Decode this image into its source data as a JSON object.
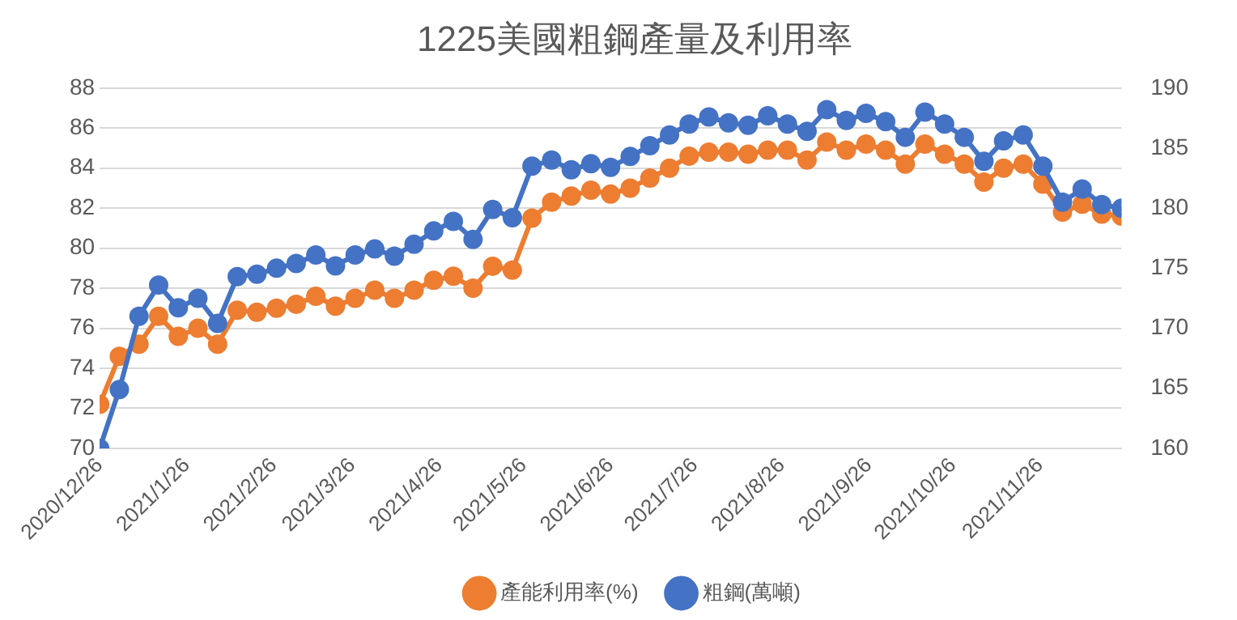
{
  "chart_data": {
    "type": "line",
    "title": "1225美國粗鋼產量及利用率",
    "x": [
      "2020-12-26",
      "2021-01-02",
      "2021-01-09",
      "2021-01-16",
      "2021-01-23",
      "2021-01-30",
      "2021-02-06",
      "2021-02-13",
      "2021-02-20",
      "2021-02-27",
      "2021-03-06",
      "2021-03-13",
      "2021-03-20",
      "2021-03-27",
      "2021-04-03",
      "2021-04-10",
      "2021-04-17",
      "2021-04-24",
      "2021-05-01",
      "2021-05-08",
      "2021-05-15",
      "2021-05-22",
      "2021-05-29",
      "2021-06-05",
      "2021-06-12",
      "2021-06-19",
      "2021-06-26",
      "2021-07-03",
      "2021-07-10",
      "2021-07-17",
      "2021-07-24",
      "2021-07-31",
      "2021-08-07",
      "2021-08-14",
      "2021-08-21",
      "2021-08-28",
      "2021-09-04",
      "2021-09-11",
      "2021-09-18",
      "2021-09-25",
      "2021-10-02",
      "2021-10-09",
      "2021-10-16",
      "2021-10-23",
      "2021-10-30",
      "2021-11-06",
      "2021-11-13",
      "2021-11-20",
      "2021-11-27",
      "2021-12-04",
      "2021-12-11",
      "2021-12-18",
      "2021-12-25"
    ],
    "series": [
      {
        "name": "產能利用率(%)",
        "color": "#ed7d31",
        "values": [
          72.2,
          74.6,
          75.2,
          76.6,
          75.6,
          76.0,
          75.2,
          76.9,
          76.8,
          77.0,
          77.2,
          77.6,
          77.1,
          77.5,
          77.9,
          77.5,
          77.9,
          78.4,
          78.6,
          78.0,
          79.1,
          78.9,
          81.5,
          82.3,
          82.6,
          82.9,
          82.7,
          83.0,
          83.5,
          84.0,
          84.6,
          84.8,
          84.8,
          84.7,
          84.9,
          84.9,
          84.4,
          85.3,
          84.9,
          85.2,
          84.9,
          84.2,
          85.2,
          84.7,
          84.2,
          83.3,
          84.0,
          84.2,
          83.2,
          81.8,
          82.2,
          81.7,
          81.6
        ]
      },
      {
        "name": "粗鋼(萬噸)",
        "color": "#4472c4",
        "axis": "y2",
        "values": [
          160,
          164.9,
          171.0,
          173.6,
          171.7,
          172.5,
          170.4,
          174.3,
          174.5,
          175.0,
          175.4,
          176.1,
          175.2,
          176.1,
          176.6,
          176.0,
          177.0,
          178.1,
          178.9,
          177.4,
          179.9,
          179.2,
          183.5,
          184.0,
          183.2,
          183.7,
          183.4,
          184.3,
          185.2,
          186.1,
          187.0,
          187.6,
          187.1,
          186.9,
          187.7,
          187.0,
          186.4,
          188.2,
          187.3,
          187.9,
          187.2,
          185.9,
          188.0,
          187.0,
          185.9,
          183.9,
          185.6,
          186.1,
          183.5,
          180.5,
          181.6,
          180.3,
          180.0
        ]
      }
    ],
    "xlim": [
      "2020-12-26",
      "2021-12-25"
    ],
    "xticks": [
      {
        "value": "2020-12-26",
        "label": "2020/12/26"
      },
      {
        "value": "2021-01-26",
        "label": "2021/1/26"
      },
      {
        "value": "2021-02-26",
        "label": "2021/2/26"
      },
      {
        "value": "2021-03-26",
        "label": "2021/3/26"
      },
      {
        "value": "2021-04-26",
        "label": "2021/4/26"
      },
      {
        "value": "2021-05-26",
        "label": "2021/5/26"
      },
      {
        "value": "2021-06-26",
        "label": "2021/6/26"
      },
      {
        "value": "2021-07-26",
        "label": "2021/7/26"
      },
      {
        "value": "2021-08-26",
        "label": "2021/8/26"
      },
      {
        "value": "2021-09-26",
        "label": "2021/9/26"
      },
      {
        "value": "2021-10-26",
        "label": "2021/10/26"
      },
      {
        "value": "2021-11-26",
        "label": "2021/11/26"
      }
    ],
    "ylim": [
      70,
      88
    ],
    "yticks": [
      70,
      72,
      74,
      76,
      78,
      80,
      82,
      84,
      86,
      88
    ],
    "y2lim": [
      160,
      190
    ],
    "y2ticks": [
      160,
      165,
      170,
      175,
      180,
      185,
      190
    ],
    "grid": "y",
    "legend": "bottom",
    "marker": "circle",
    "line_style": "solid"
  }
}
